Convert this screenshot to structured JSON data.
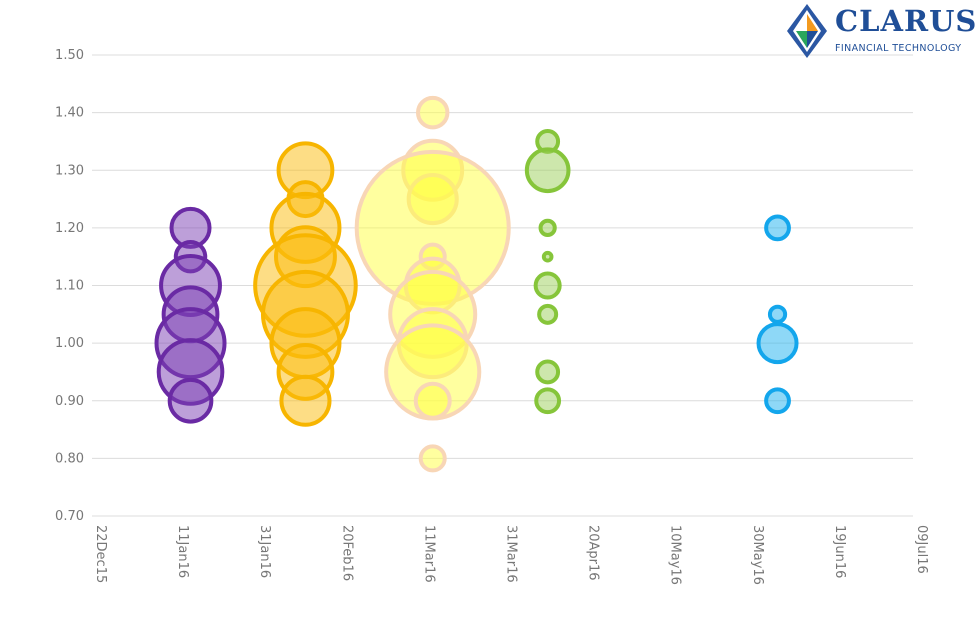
{
  "logo": {
    "name": "CLARUS",
    "tagline": "FINANCIAL TECHNOLOGY"
  },
  "chart_data": {
    "type": "scatter",
    "title": "",
    "xlabel": "",
    "ylabel": "",
    "x_ticks": [
      "22Dec15",
      "11Jan16",
      "31Jan16",
      "20Feb16",
      "11Mar16",
      "31Mar16",
      "20Apr16",
      "10May16",
      "30May16",
      "19Jun16",
      "09Jul16"
    ],
    "xlim": [
      "2015-12-22",
      "2016-07-09"
    ],
    "y_ticks": [
      "0.70",
      "0.80",
      "0.90",
      "1.00",
      "1.10",
      "1.20",
      "1.30",
      "1.40",
      "1.50"
    ],
    "ylim": [
      0.7,
      1.5
    ],
    "grid": "horizontal",
    "legend": "none",
    "series": [
      {
        "date": "2016-01-15",
        "fill": "#7b3fb4",
        "stroke": "#6a2aa4",
        "bubbles": [
          {
            "y": 1.2,
            "size": 5
          },
          {
            "y": 1.15,
            "size": 3
          },
          {
            "y": 1.1,
            "size": 12
          },
          {
            "y": 1.05,
            "size": 10
          },
          {
            "y": 1.0,
            "size": 16
          },
          {
            "y": 0.95,
            "size": 14
          },
          {
            "y": 0.9,
            "size": 6
          }
        ]
      },
      {
        "date": "2016-02-12",
        "fill": "#fbbc0c",
        "stroke": "#f7b500",
        "bubbles": [
          {
            "y": 1.3,
            "size": 10
          },
          {
            "y": 1.25,
            "size": 4
          },
          {
            "y": 1.2,
            "size": 16
          },
          {
            "y": 1.15,
            "size": 12
          },
          {
            "y": 1.1,
            "size": 35
          },
          {
            "y": 1.05,
            "size": 25
          },
          {
            "y": 1.0,
            "size": 16
          },
          {
            "y": 0.95,
            "size": 10
          },
          {
            "y": 0.9,
            "size": 8
          }
        ]
      },
      {
        "date": "2016-03-14",
        "fill": "#ffff40",
        "stroke": "#f8d6b6",
        "bubbles": [
          {
            "y": 1.4,
            "size": 3
          },
          {
            "y": 1.3,
            "size": 12
          },
          {
            "y": 1.25,
            "size": 8
          },
          {
            "y": 1.2,
            "size": 80
          },
          {
            "y": 1.15,
            "size": 2
          },
          {
            "y": 1.1,
            "size": 10
          },
          {
            "y": 1.05,
            "size": 25
          },
          {
            "y": 1.0,
            "size": 16
          },
          {
            "y": 0.95,
            "size": 30
          },
          {
            "y": 0.9,
            "size": 4
          },
          {
            "y": 0.8,
            "size": 2
          }
        ]
      },
      {
        "date": "2016-04-11",
        "fill": "#9bcf5a",
        "stroke": "#86c53a",
        "bubbles": [
          {
            "y": 1.35,
            "size": 1.5
          },
          {
            "y": 1.3,
            "size": 6
          },
          {
            "y": 1.2,
            "size": 0.7
          },
          {
            "y": 1.15,
            "size": 0.2
          },
          {
            "y": 1.1,
            "size": 2
          },
          {
            "y": 1.05,
            "size": 1
          },
          {
            "y": 0.95,
            "size": 1.5
          },
          {
            "y": 0.9,
            "size": 1.8
          }
        ]
      },
      {
        "date": "2016-06-06",
        "fill": "#1eb1f0",
        "stroke": "#13a6ec",
        "bubbles": [
          {
            "y": 1.2,
            "size": 1.8
          },
          {
            "y": 1.05,
            "size": 0.8
          },
          {
            "y": 1.0,
            "size": 5
          },
          {
            "y": 0.9,
            "size": 1.8
          }
        ]
      }
    ]
  }
}
